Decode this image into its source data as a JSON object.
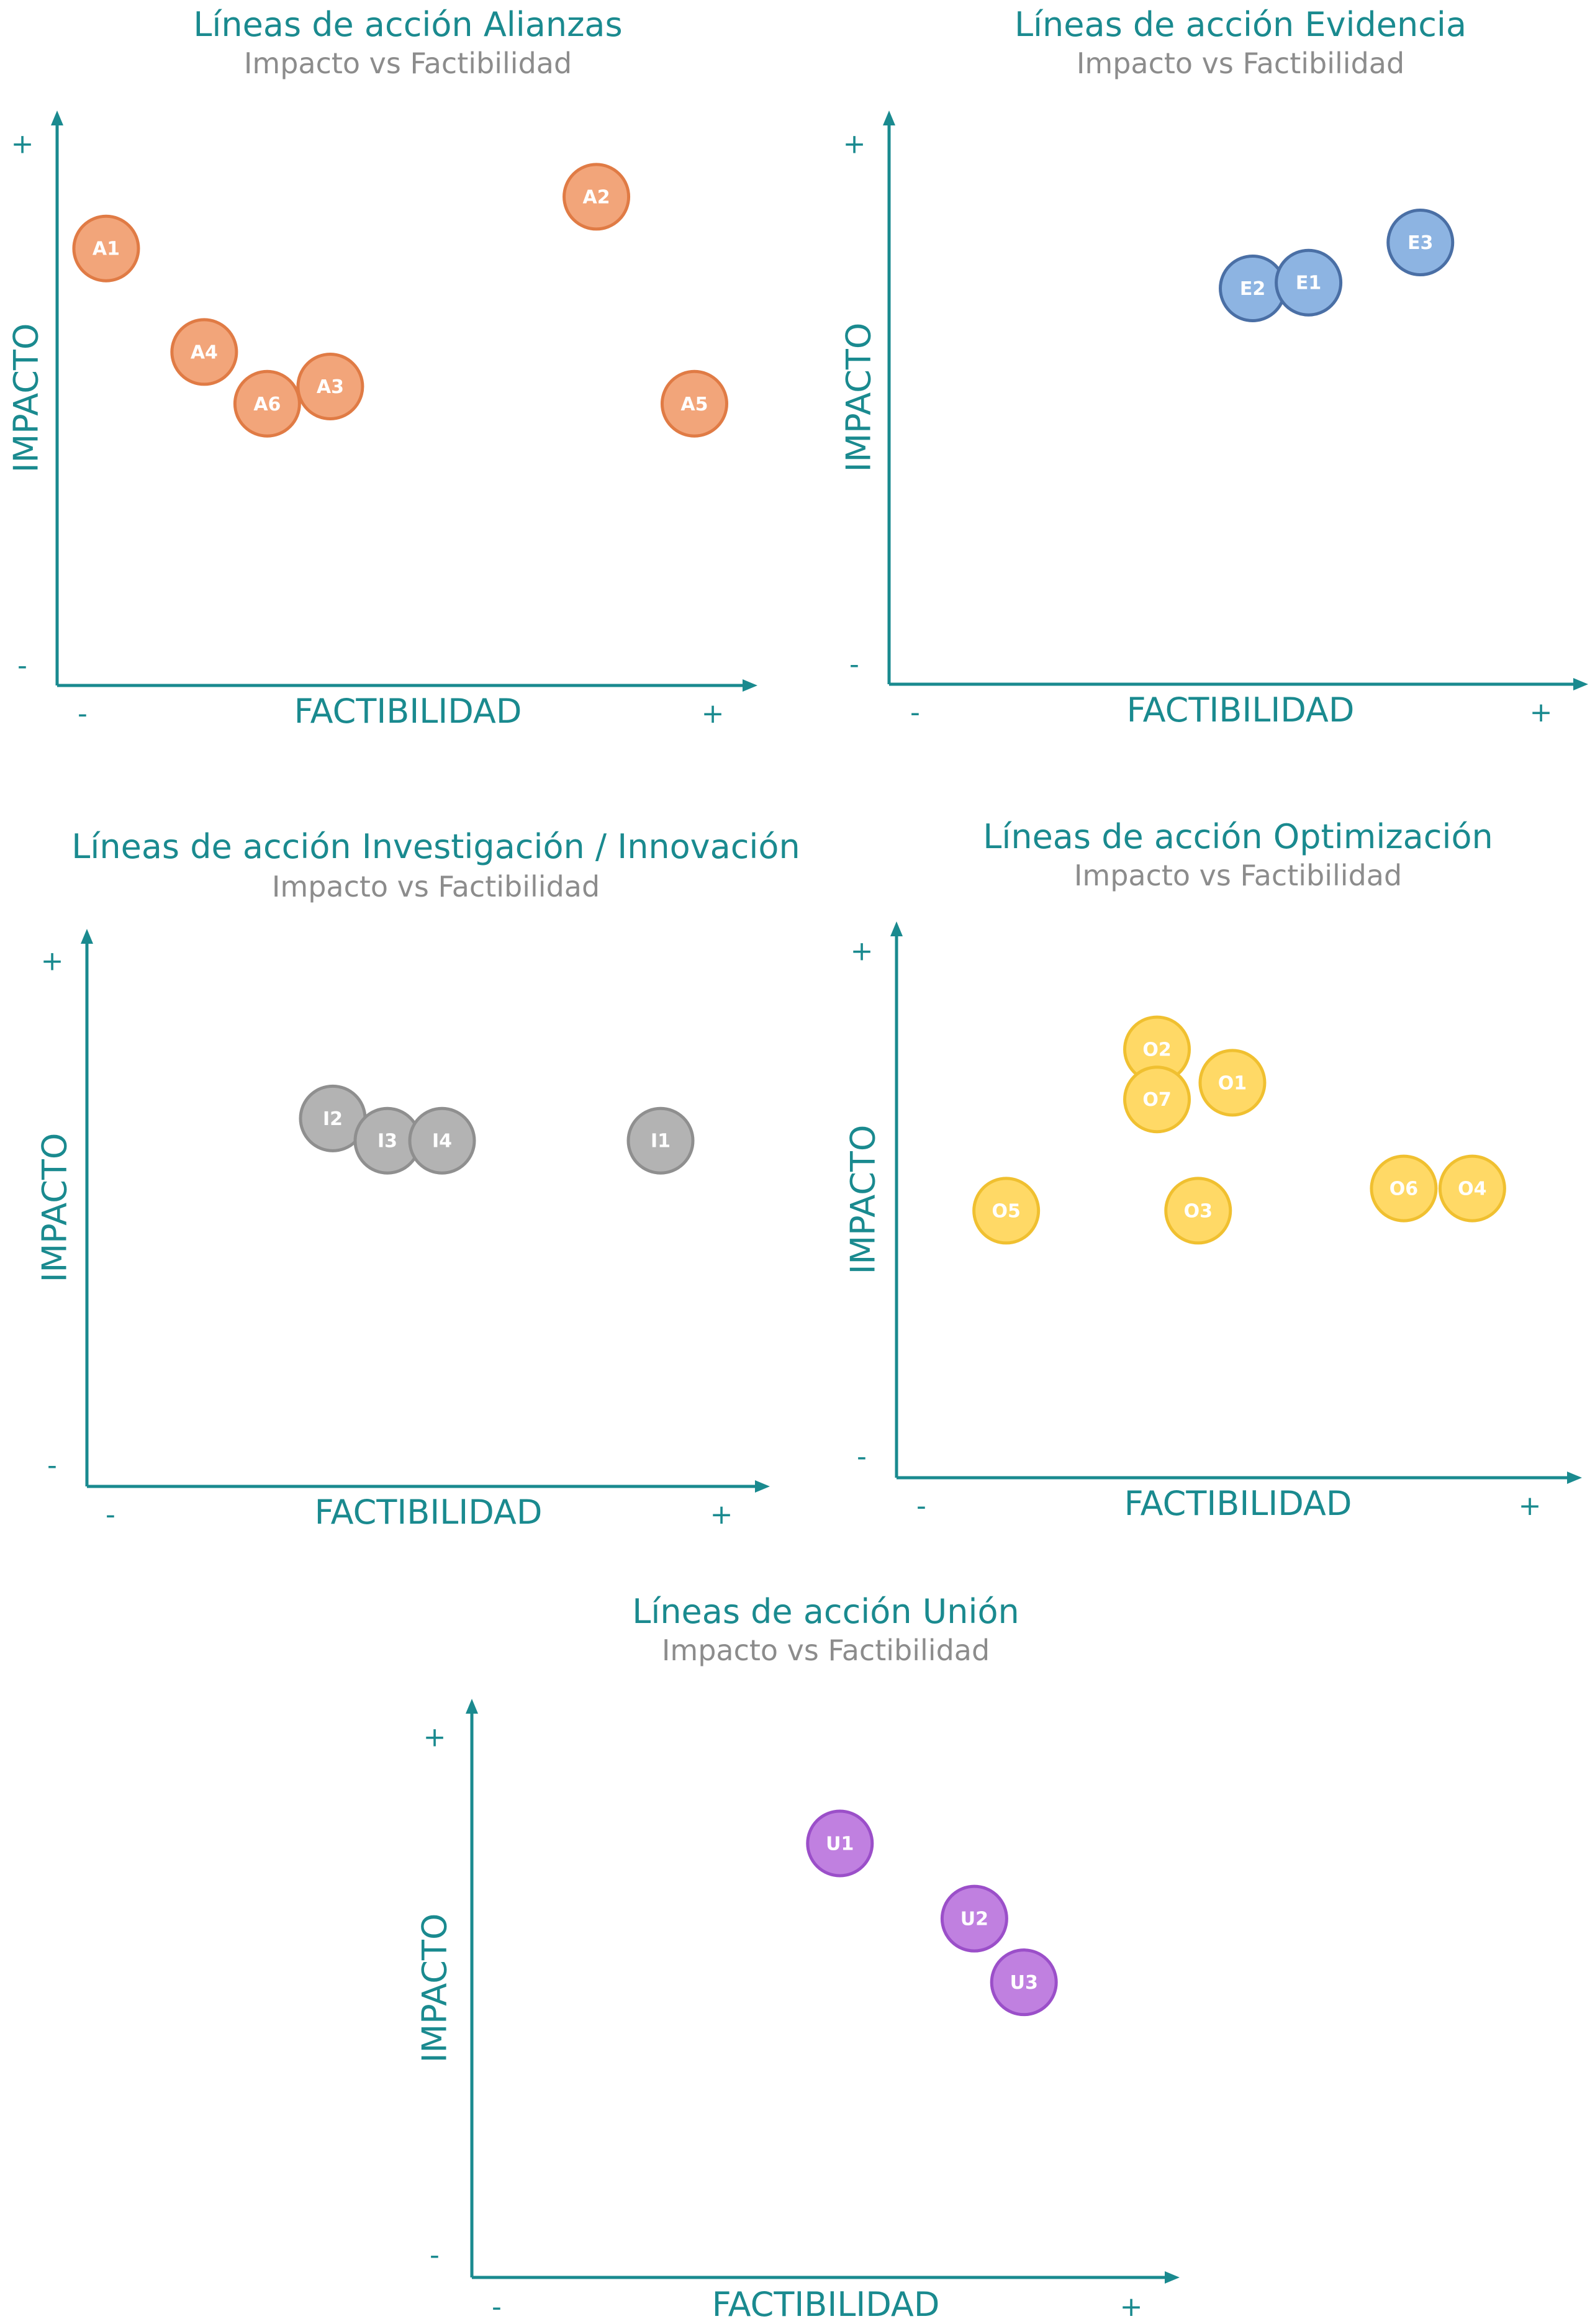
{
  "chart_data": [
    {
      "type": "scatter",
      "title": "Líneas de acción Alianzas",
      "subtitle": "Impacto vs Factibilidad",
      "xlabel": "FACTIBILIDAD",
      "ylabel": "IMPACTO",
      "x_ticks": {
        "min": "-",
        "max": "+"
      },
      "y_ticks": {
        "min": "-",
        "max": "+"
      },
      "xlim": [
        0,
        10
      ],
      "ylim": [
        0,
        10
      ],
      "fill": "#f2a57a",
      "stroke": "#e07b45",
      "points": [
        {
          "label": "A1",
          "x": 0.7,
          "y": 7.6
        },
        {
          "label": "A2",
          "x": 7.7,
          "y": 8.5
        },
        {
          "label": "A4",
          "x": 2.1,
          "y": 5.8
        },
        {
          "label": "A6",
          "x": 3.0,
          "y": 4.9
        },
        {
          "label": "A3",
          "x": 3.9,
          "y": 5.2
        },
        {
          "label": "A5",
          "x": 9.1,
          "y": 4.9
        }
      ]
    },
    {
      "type": "scatter",
      "title": "Líneas de acción Evidencia",
      "subtitle": "Impacto vs Factibilidad",
      "xlabel": "FACTIBILIDAD",
      "ylabel": "IMPACTO",
      "x_ticks": {
        "min": "-",
        "max": "+"
      },
      "y_ticks": {
        "min": "-",
        "max": "+"
      },
      "xlim": [
        0,
        10
      ],
      "ylim": [
        0,
        10
      ],
      "fill": "#8db4e2",
      "stroke": "#4a6fa5",
      "points": [
        {
          "label": "E2",
          "x": 5.2,
          "y": 6.9
        },
        {
          "label": "E1",
          "x": 6.0,
          "y": 7.0
        },
        {
          "label": "E3",
          "x": 7.6,
          "y": 7.7
        }
      ]
    },
    {
      "type": "scatter",
      "title": "Líneas de acción Investigación / Innovación",
      "subtitle": "Impacto vs Factibilidad",
      "xlabel": "FACTIBILIDAD",
      "ylabel": "IMPACTO",
      "x_ticks": {
        "min": "-",
        "max": "+"
      },
      "y_ticks": {
        "min": "-",
        "max": "+"
      },
      "xlim": [
        0,
        10
      ],
      "ylim": [
        0,
        10
      ],
      "fill": "#b3b3b3",
      "stroke": "#8f8f8f",
      "points": [
        {
          "label": "I2",
          "x": 3.6,
          "y": 6.6
        },
        {
          "label": "I3",
          "x": 4.4,
          "y": 6.2
        },
        {
          "label": "I4",
          "x": 5.2,
          "y": 6.2
        },
        {
          "label": "I1",
          "x": 8.4,
          "y": 6.2
        }
      ]
    },
    {
      "type": "scatter",
      "title": "Líneas de acción Optimización",
      "subtitle": "Impacto vs Factibilidad",
      "xlabel": "FACTIBILIDAD",
      "ylabel": "IMPACTO",
      "x_ticks": {
        "min": "-",
        "max": "+"
      },
      "y_ticks": {
        "min": "-",
        "max": "+"
      },
      "xlim": [
        0,
        10
      ],
      "ylim": [
        0,
        10
      ],
      "fill": "#ffd966",
      "stroke": "#f0c030",
      "points": [
        {
          "label": "O2",
          "x": 3.8,
          "y": 7.7
        },
        {
          "label": "O7",
          "x": 3.8,
          "y": 6.8
        },
        {
          "label": "O1",
          "x": 4.9,
          "y": 7.1
        },
        {
          "label": "O5",
          "x": 1.6,
          "y": 4.8
        },
        {
          "label": "O3",
          "x": 4.4,
          "y": 4.8
        },
        {
          "label": "O6",
          "x": 7.4,
          "y": 5.2
        },
        {
          "label": "O4",
          "x": 8.4,
          "y": 5.2
        }
      ]
    },
    {
      "type": "scatter",
      "title": "Líneas de acción Unión",
      "subtitle": "Impacto vs Factibilidad",
      "xlabel": "FACTIBILIDAD",
      "ylabel": "IMPACTO",
      "x_ticks": {
        "min": "-",
        "max": "+"
      },
      "y_ticks": {
        "min": "-",
        "max": "+"
      },
      "xlim": [
        0,
        10
      ],
      "ylim": [
        0,
        10
      ],
      "fill": "#c080e0",
      "stroke": "#9b4fc9",
      "points": [
        {
          "label": "U1",
          "x": 5.2,
          "y": 7.5
        },
        {
          "label": "U2",
          "x": 7.1,
          "y": 6.2
        },
        {
          "label": "U3",
          "x": 7.8,
          "y": 5.1
        }
      ]
    }
  ]
}
